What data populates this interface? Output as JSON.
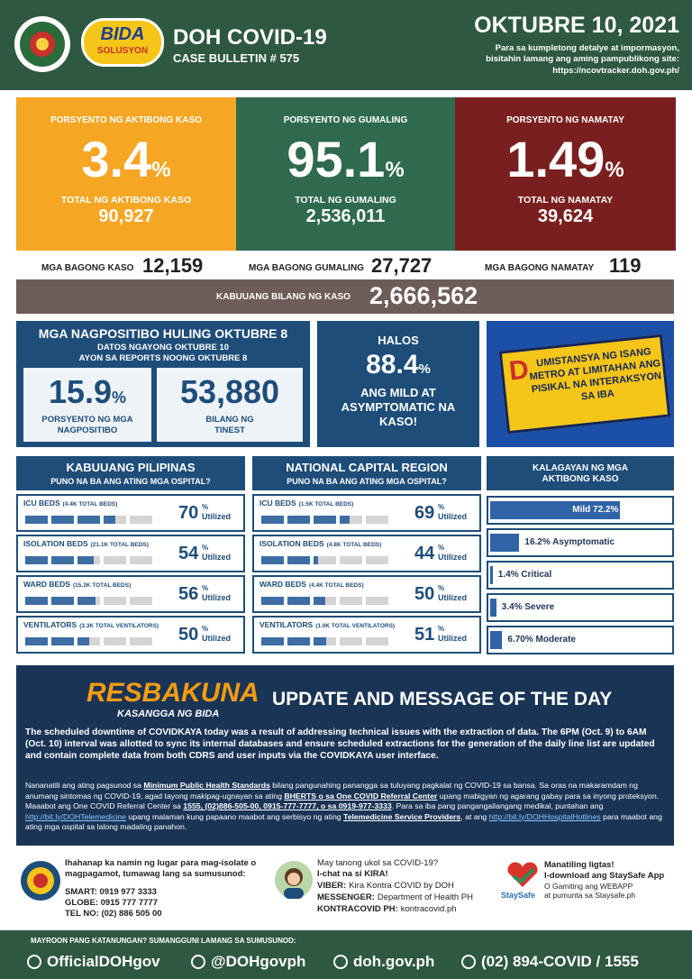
{
  "header": {
    "title": "DOH COVID-19",
    "subtitle": "CASE BULLETIN # 575",
    "badge": "BIDA",
    "badge_sub": "SOLUSYON",
    "date": "OKTUBRE 10, 2021",
    "note": "Para sa kumpletong detalye at impormasyon, bisitahin lamang ang aming pampublikong site:",
    "url": "https://ncovtracker.doh.gov.ph/"
  },
  "stats": [
    {
      "label": "PORSYENTO NG AKTIBONG KASO",
      "value": "3.4",
      "unit": "%",
      "total_label": "TOTAL NG AKTIBONG KASO",
      "total": "90,927",
      "color": "#f5a623"
    },
    {
      "label": "PORSYENTO NG GUMALING",
      "value": "95.1",
      "unit": "%",
      "total_label": "TOTAL NG GUMALING",
      "total": "2,536,011",
      "color": "#2f6a4e"
    },
    {
      "label": "PORSYENTO NG NAMATAY",
      "value": "1.49",
      "unit": "%",
      "total_label": "TOTAL NG NAMATAY",
      "total": "39,624",
      "color": "#7a1f1f"
    }
  ],
  "new_cases": [
    {
      "label": "MGA BAGONG KASO",
      "value": "12,159"
    },
    {
      "label": "MGA BAGONG GUMALING",
      "value": "27,727"
    },
    {
      "label": "MGA BAGONG NAMATAY",
      "value": "119"
    }
  ],
  "total": {
    "label": "KABUUANG BILANG NG KASO",
    "value": "2,666,562"
  },
  "positivity": {
    "title": "MGA NAGPOSITIBO HULING OKTUBRE 8",
    "line1": "DATOS NGAYONG OKTUBRE 10",
    "line2": "AYON SA REPORTS NOONG OKTUBRE 8",
    "rate": "15.9",
    "unit": "%",
    "rate_label": "PORSYENTO NG MGA NAGPOSITIBO",
    "tested": "53,880",
    "tested_label": "BILANG NG TINEST"
  },
  "mild": {
    "pre": "HALOS",
    "value": "88.4",
    "unit": "%",
    "text": "ANG MILD AT ASYMPTOMATIC NA KASO!"
  },
  "banner": {
    "initial": "D",
    "text": "UMISTANSYA NG ISANG METRO AT LIMITAHAN ANG PISIKAL NA INTERAKSYON SA IBA"
  },
  "hospitals": {
    "unit": "%",
    "util": "Utilized",
    "columns": [
      {
        "title": "KABUUANG PILIPINAS",
        "subtitle": "PUNO NA BA ANG ATING MGA OSPITAL?",
        "rows": [
          {
            "label": "ICU BEDS",
            "cap": "(4.4K TOTAL BEDS)",
            "value": 70
          },
          {
            "label": "ISOLATION BEDS",
            "cap": "(21.1K TOTAL BEDS)",
            "value": 54
          },
          {
            "label": "WARD BEDS",
            "cap": "(15.3K TOTAL BEDS)",
            "value": 56
          },
          {
            "label": "VENTILATORS",
            "cap": "(3.3K TOTAL VENTILATORS)",
            "value": 50
          }
        ]
      },
      {
        "title": "NATIONAL CAPITAL REGION",
        "subtitle": "PUNO NA BA ANG ATING MGA OSPITAL?",
        "rows": [
          {
            "label": "ICU BEDS",
            "cap": "(1.5K TOTAL BEDS)",
            "value": 69
          },
          {
            "label": "ISOLATION BEDS",
            "cap": "(4.8K TOTAL BEDS)",
            "value": 44
          },
          {
            "label": "WARD BEDS",
            "cap": "(4.4K TOTAL BEDS)",
            "value": 50
          },
          {
            "label": "VENTILATORS",
            "cap": "(1.0K TOTAL VENTILATORS)",
            "value": 51
          }
        ]
      }
    ]
  },
  "status": {
    "title": "KALAGAYAN NG MGA AKTIBONG KASO",
    "items": [
      {
        "label": "Mild 72.2%",
        "value": 72.2
      },
      {
        "label": "16.2% Asymptomatic",
        "value": 16.2
      },
      {
        "label": "1.4% Critical",
        "value": 1.4
      },
      {
        "label": "3.4% Severe",
        "value": 3.4
      },
      {
        "label": "6.70% Moderate",
        "value": 6.7
      }
    ]
  },
  "update": {
    "logo": "RESBAKUNA",
    "logo_sub": "KASANGGA NG BIDA",
    "title": "UPDATE AND MESSAGE OF THE DAY",
    "message": "The scheduled downtime of COVIDKAYA today was a result of addressing technical issues with the extraction of data. The 6PM (Oct. 9) to 6AM (Oct. 10) interval was allotted to sync its internal databases and ensure scheduled extractions for the generation of the daily line list are updated and contain complete data from both CDRS and user inputs via the COVIDKAYA user interface.",
    "notice": [
      {
        "text": "Nananatili ang ating pagsunod sa ",
        "style": "plain"
      },
      {
        "text": "Minimum Public Health Standards",
        "style": "bold"
      },
      {
        "text": " bilang pangunahing panangga sa tuluyang pagkalat ng COVID-19 sa bansa. Sa oras na makaramdam ng anumang sintomas ng COVID-19, agad tayong makipag-ugnayan sa ating ",
        "style": "plain"
      },
      {
        "text": "BHERTS o sa One COVID Referral Center",
        "style": "bold"
      },
      {
        "text": " upang mabigyan ng agarang gabay para sa inyong proteksyon. Maaabot ang One COVID Referral Center sa ",
        "style": "plain"
      },
      {
        "text": "1555, (02)886-505-00, 0915-777-7777, o sa 0919-977-3333",
        "style": "bold"
      },
      {
        "text": ". Para sa iba pang pangangailangang medikal, puntahan ang ",
        "style": "plain"
      },
      {
        "text": "http://bit.ly/DOHTelemedicine",
        "style": "link"
      },
      {
        "text": " upang malaman kung papaano maabot ang serbisyo ng ating ",
        "style": "plain"
      },
      {
        "text": "Telemedicine Service Providers",
        "style": "bold"
      },
      {
        "text": ", at ang ",
        "style": "plain"
      },
      {
        "text": "http://bit.ly/DOHHospitalHotlines",
        "style": "link"
      },
      {
        "text": " para maabot ang ating mga ospital sa lalong madaling panahon.",
        "style": "plain"
      }
    ]
  },
  "contacts": {
    "isolation": {
      "text": "Ihahanap ka namin ng lugar para mag-isolate o magpagamot, tumawag lang sa sumusunod:",
      "lines": [
        "SMART: 0919 977 3333",
        "GLOBE: 0915 777 7777",
        "TEL NO: (02) 886 505 00"
      ]
    },
    "kira": {
      "title1": "May tanong ukol sa COVID-19?",
      "title2": "I-chat na si KIRA!",
      "lines": [
        {
          "key": "VIBER:",
          "val": "Kira Kontra COVID by DOH"
        },
        {
          "key": "MESSENGER:",
          "val": "Department of Health PH"
        },
        {
          "key": "KONTRACOVID PH:",
          "val": "kontracovid.ph"
        }
      ]
    },
    "staysafe": {
      "logo": "StaySafe",
      "title1": "Manatiling ligtas!",
      "title2": "I-download ang StaySafe App",
      "sub1": "O Gamiting ang WEBAPP",
      "sub2": "at pumunta sa Staysafe.ph"
    }
  },
  "footer": {
    "label": "MAYROON PANG KATANUNGAN? SUMANGGUNI LAMANG SA SUMUSUNOD:",
    "items": [
      "OfficialDOHgov",
      "@DOHgovph",
      "doh.gov.ph",
      "(02) 894-COVID / 1555"
    ]
  }
}
